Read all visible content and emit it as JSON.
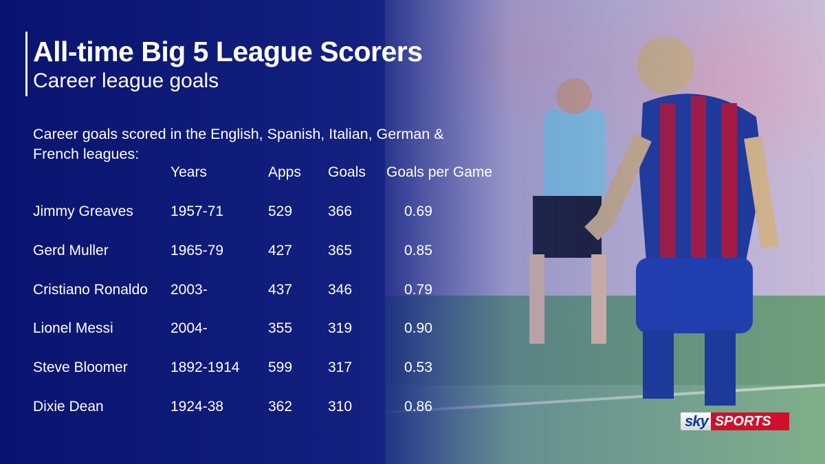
{
  "header": {
    "title": "All-time Big 5 League Scorers",
    "subtitle": "Career league goals"
  },
  "intro": "Career goals scored in the English, Spanish, Italian, German & French leagues:",
  "table": {
    "columns": [
      "Years",
      "Apps",
      "Goals",
      "Goals per Game"
    ],
    "rows": [
      [
        "Jimmy Greaves",
        "1957-71",
        "529",
        "366",
        "0.69"
      ],
      [
        "Gerd Muller",
        "1965-79",
        "427",
        "365",
        "0.85"
      ],
      [
        "Cristiano Ronaldo",
        "2003-",
        "437",
        "346",
        "0.79"
      ],
      [
        "Lionel Messi",
        "2004-",
        "355",
        "319",
        "0.90"
      ],
      [
        "Steve Bloomer",
        "1892-1914",
        "599",
        "317",
        "0.53"
      ],
      [
        "Dixie Dean",
        "1924-38",
        "362",
        "310",
        "0.86"
      ]
    ]
  },
  "logo": {
    "brand": "sky",
    "product": "SPORTS"
  }
}
